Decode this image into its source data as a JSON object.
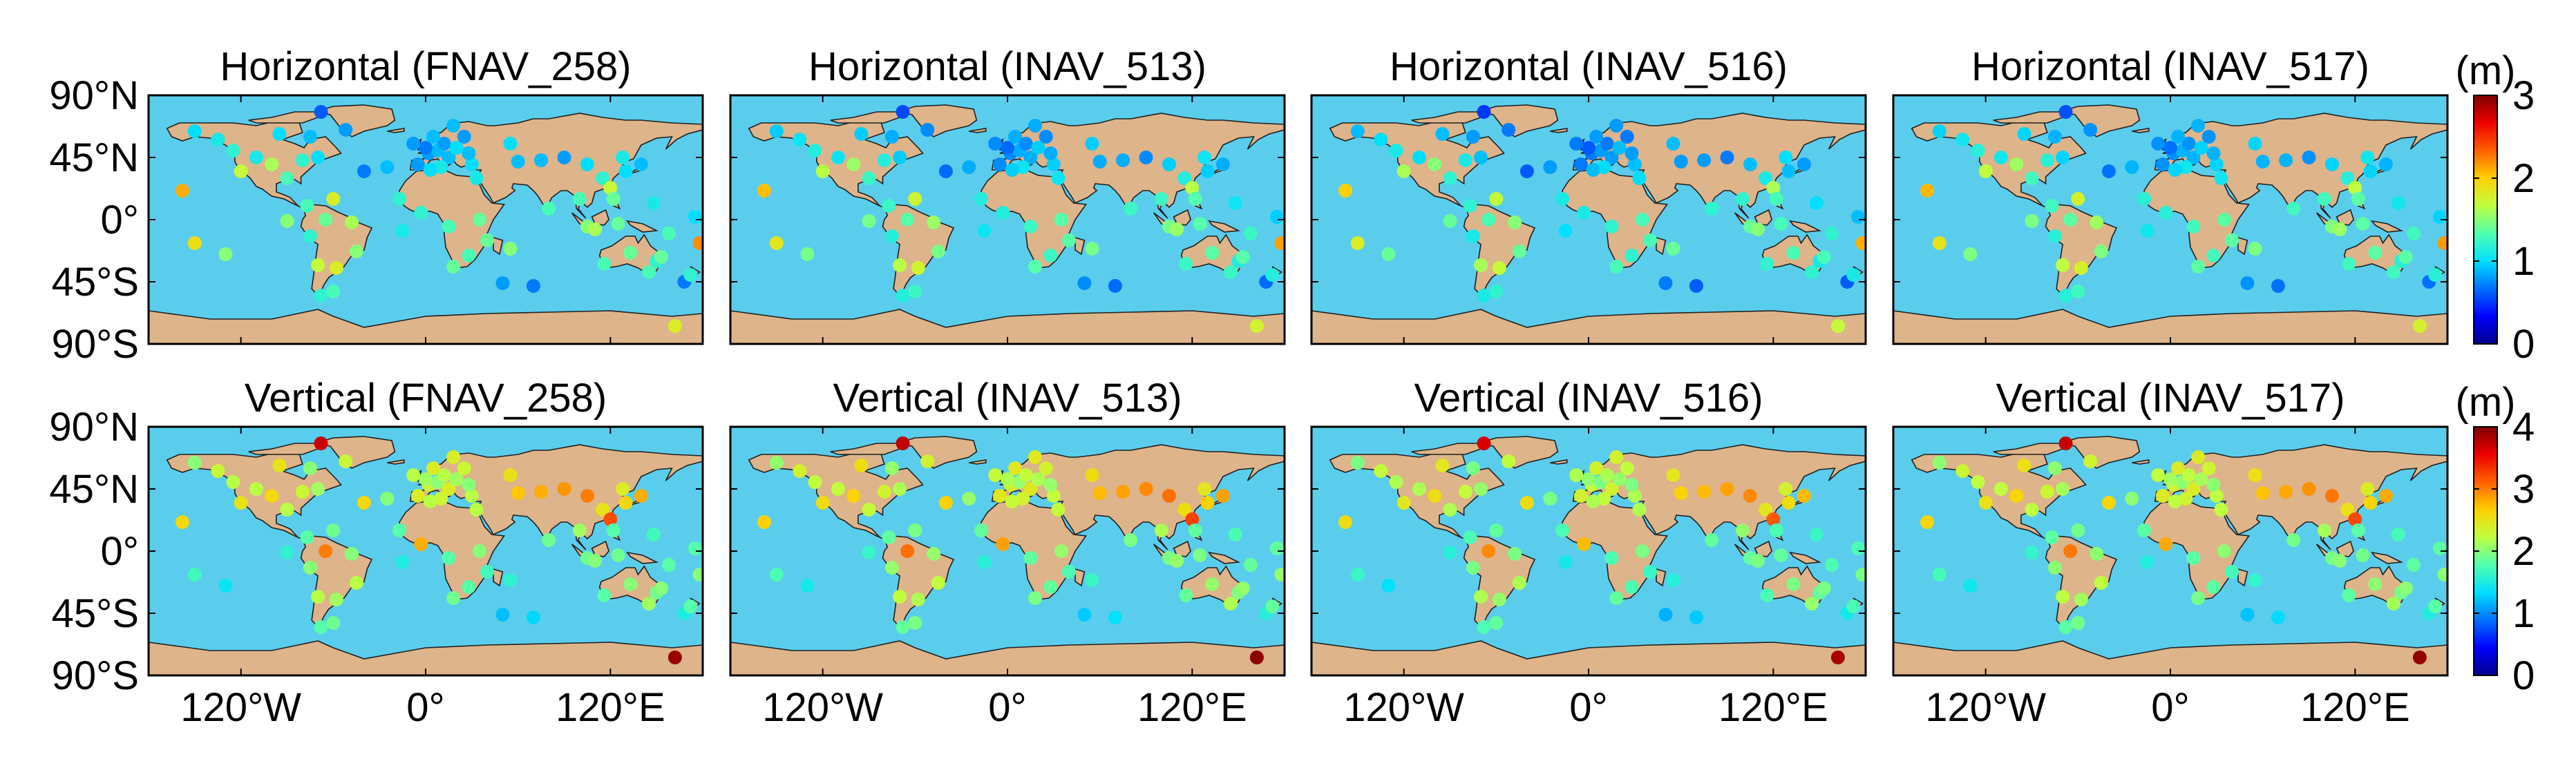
{
  "colors": {
    "ocean": "#5bcdec",
    "land": "#deb48a",
    "coast": "#1e1e1e",
    "frame": "#000000"
  },
  "colormap": [
    "#00008f",
    "#0000ff",
    "#0070ff",
    "#00dfff",
    "#50ffaf",
    "#bfff40",
    "#ffd000",
    "#ff6000",
    "#ef0000",
    "#800000"
  ],
  "rows": [
    {
      "kind": "horizontal",
      "colorbar": {
        "unit": "(m)",
        "min": 0,
        "max": 3,
        "ticks": [
          "0",
          "1",
          "2",
          "3"
        ]
      },
      "panels": [
        {
          "title": "Horizontal (FNAV_258)",
          "offset": 0.0
        },
        {
          "title": "Horizontal (INAV_513)",
          "offset": -0.05
        },
        {
          "title": "Horizontal (INAV_516)",
          "offset": -0.1
        },
        {
          "title": "Horizontal (INAV_517)",
          "offset": -0.03
        }
      ]
    },
    {
      "kind": "vertical",
      "colorbar": {
        "unit": "(m)",
        "min": 0,
        "max": 4,
        "ticks": [
          "0",
          "1",
          "2",
          "3",
          "4"
        ]
      },
      "panels": [
        {
          "title": "Vertical (FNAV_258)",
          "offset": 0.0
        },
        {
          "title": "Vertical (INAV_513)",
          "offset": 0.05
        },
        {
          "title": "Vertical (INAV_516)",
          "offset": -0.05
        },
        {
          "title": "Vertical (INAV_517)",
          "offset": 0.02
        }
      ]
    }
  ],
  "lat_ticks": [
    "90°N",
    "45°N",
    "0°",
    "45°S",
    "90°S"
  ],
  "lon_ticks": [
    "120°W",
    "0°",
    "120°E"
  ],
  "stations": [
    {
      "lon": -150,
      "lat": 64,
      "h": 1.0,
      "v": 2.0
    },
    {
      "lon": -135,
      "lat": 58,
      "h": 1.1,
      "v": 2.3
    },
    {
      "lon": -125,
      "lat": 50,
      "h": 1.2,
      "v": 2.2
    },
    {
      "lon": -120,
      "lat": 35,
      "h": 1.7,
      "v": 2.5
    },
    {
      "lon": -110,
      "lat": 45,
      "h": 1.1,
      "v": 2.2
    },
    {
      "lon": -100,
      "lat": 40,
      "h": 1.6,
      "v": 2.6
    },
    {
      "lon": -95,
      "lat": 62,
      "h": 1.0,
      "v": 2.5
    },
    {
      "lon": -90,
      "lat": 30,
      "h": 1.3,
      "v": 2.2
    },
    {
      "lon": -80,
      "lat": 43,
      "h": 1.2,
      "v": 2.3
    },
    {
      "lon": -75,
      "lat": 60,
      "h": 0.9,
      "v": 2.0
    },
    {
      "lon": -70,
      "lat": 45,
      "h": 1.0,
      "v": 2.1
    },
    {
      "lon": -68,
      "lat": 78,
      "h": 0.6,
      "v": 3.7
    },
    {
      "lon": -52,
      "lat": 65,
      "h": 0.8,
      "v": 2.3
    },
    {
      "lon": -40,
      "lat": 35,
      "h": 0.7,
      "v": 2.6
    },
    {
      "lon": -158,
      "lat": 21,
      "h": 2.1,
      "v": 2.6
    },
    {
      "lon": -150,
      "lat": -17,
      "h": 1.9,
      "v": 1.7
    },
    {
      "lon": -130,
      "lat": -25,
      "h": 1.5,
      "v": 1.4
    },
    {
      "lon": -90,
      "lat": -1,
      "h": 1.5,
      "v": 1.6
    },
    {
      "lon": -77,
      "lat": 10,
      "h": 1.3,
      "v": 1.8
    },
    {
      "lon": -60,
      "lat": 15,
      "h": 1.8,
      "v": 1.9
    },
    {
      "lon": -75,
      "lat": -12,
      "h": 1.2,
      "v": 2.0
    },
    {
      "lon": -65,
      "lat": 0,
      "h": 1.4,
      "v": 3.0
    },
    {
      "lon": -48,
      "lat": -2,
      "h": 1.6,
      "v": 2.0
    },
    {
      "lon": -45,
      "lat": -23,
      "h": 1.5,
      "v": 2.2
    },
    {
      "lon": -70,
      "lat": -33,
      "h": 1.7,
      "v": 2.2
    },
    {
      "lon": -58,
      "lat": -35,
      "h": 1.8,
      "v": 2.1
    },
    {
      "lon": -68,
      "lat": -55,
      "h": 1.2,
      "v": 1.8
    },
    {
      "lon": -60,
      "lat": -52,
      "h": 1.3,
      "v": 1.9
    },
    {
      "lon": -15,
      "lat": -8,
      "h": 1.1,
      "v": 1.5
    },
    {
      "lon": -17,
      "lat": 15,
      "h": 1.2,
      "v": 1.8
    },
    {
      "lon": -25,
      "lat": 38,
      "h": 0.9,
      "v": 2.0
    },
    {
      "lon": -5,
      "lat": 40,
      "h": 0.8,
      "v": 2.4
    },
    {
      "lon": 2,
      "lat": 48,
      "h": 0.8,
      "v": 2.3
    },
    {
      "lon": 8,
      "lat": 50,
      "h": 0.9,
      "v": 2.0
    },
    {
      "lon": 12,
      "lat": 55,
      "h": 0.8,
      "v": 2.2
    },
    {
      "lon": 15,
      "lat": 45,
      "h": 0.9,
      "v": 2.4
    },
    {
      "lon": 20,
      "lat": 52,
      "h": 1.0,
      "v": 2.1
    },
    {
      "lon": 25,
      "lat": 60,
      "h": 0.8,
      "v": 2.3
    },
    {
      "lon": 18,
      "lat": 68,
      "h": 0.9,
      "v": 2.4
    },
    {
      "lon": 30,
      "lat": 40,
      "h": 1.0,
      "v": 2.2
    },
    {
      "lon": 28,
      "lat": 48,
      "h": 0.9,
      "v": 2.0
    },
    {
      "lon": 10,
      "lat": 38,
      "h": 1.1,
      "v": 2.3
    },
    {
      "lon": 0,
      "lat": 52,
      "h": 0.7,
      "v": 2.1
    },
    {
      "lon": -8,
      "lat": 55,
      "h": 0.8,
      "v": 2.2
    },
    {
      "lon": 5,
      "lat": 60,
      "h": 0.9,
      "v": 2.4
    },
    {
      "lon": -3,
      "lat": 5,
      "h": 1.2,
      "v": 2.8
    },
    {
      "lon": 3,
      "lat": 36,
      "h": 1.0,
      "v": 2.2
    },
    {
      "lon": 33,
      "lat": 30,
      "h": 1.1,
      "v": 2.2
    },
    {
      "lon": 35,
      "lat": 0,
      "h": 1.4,
      "v": 2.0
    },
    {
      "lon": 15,
      "lat": -5,
      "h": 1.3,
      "v": 1.8
    },
    {
      "lon": 18,
      "lat": -34,
      "h": 1.4,
      "v": 1.9
    },
    {
      "lon": 28,
      "lat": -26,
      "h": 1.3,
      "v": 1.8
    },
    {
      "lon": 40,
      "lat": -15,
      "h": 1.4,
      "v": 1.7
    },
    {
      "lon": 55,
      "lat": -21,
      "h": 1.5,
      "v": 1.6
    },
    {
      "lon": 70,
      "lat": -48,
      "h": 0.7,
      "v": 1.3
    },
    {
      "lon": 50,
      "lat": -46,
      "h": 0.8,
      "v": 1.2
    },
    {
      "lon": 55,
      "lat": 55,
      "h": 1.0,
      "v": 2.5
    },
    {
      "lon": 60,
      "lat": 42,
      "h": 0.9,
      "v": 2.7
    },
    {
      "lon": 75,
      "lat": 43,
      "h": 0.9,
      "v": 2.8
    },
    {
      "lon": 90,
      "lat": 45,
      "h": 0.8,
      "v": 2.9
    },
    {
      "lon": 105,
      "lat": 40,
      "h": 1.0,
      "v": 3.0
    },
    {
      "lon": 115,
      "lat": 30,
      "h": 1.2,
      "v": 2.5
    },
    {
      "lon": 120,
      "lat": 23,
      "h": 1.7,
      "v": 3.2
    },
    {
      "lon": 130,
      "lat": 35,
      "h": 1.0,
      "v": 2.6
    },
    {
      "lon": 140,
      "lat": 40,
      "h": 0.9,
      "v": 2.8
    },
    {
      "lon": 128,
      "lat": 45,
      "h": 1.1,
      "v": 2.4
    },
    {
      "lon": 80,
      "lat": 8,
      "h": 1.3,
      "v": 1.9
    },
    {
      "lon": 100,
      "lat": 15,
      "h": 1.3,
      "v": 2.1
    },
    {
      "lon": 105,
      "lat": -5,
      "h": 1.5,
      "v": 1.9
    },
    {
      "lon": 122,
      "lat": 15,
      "h": 1.4,
      "v": 1.8
    },
    {
      "lon": 110,
      "lat": -7,
      "h": 1.6,
      "v": 2.0
    },
    {
      "lon": 125,
      "lat": -3,
      "h": 1.4,
      "v": 1.9
    },
    {
      "lon": 148,
      "lat": 12,
      "h": 1.1,
      "v": 1.7
    },
    {
      "lon": 116,
      "lat": -32,
      "h": 1.3,
      "v": 1.8
    },
    {
      "lon": 133,
      "lat": -24,
      "h": 1.4,
      "v": 2.0
    },
    {
      "lon": 145,
      "lat": -38,
      "h": 1.3,
      "v": 2.1
    },
    {
      "lon": 150,
      "lat": -30,
      "h": 1.2,
      "v": 1.9
    },
    {
      "lon": 153,
      "lat": -27,
      "h": 1.4,
      "v": 2.0
    },
    {
      "lon": 158,
      "lat": -10,
      "h": 1.3,
      "v": 1.8
    },
    {
      "lon": 168,
      "lat": -45,
      "h": 0.7,
      "v": 1.5
    },
    {
      "lon": 172,
      "lat": -40,
      "h": 1.2,
      "v": 1.8
    },
    {
      "lon": 175,
      "lat": 2,
      "h": 1.0,
      "v": 1.8
    },
    {
      "lon": 178,
      "lat": -17,
      "h": 2.2,
      "v": 2.0
    },
    {
      "lon": 162,
      "lat": -77,
      "h": 1.8,
      "v": 3.9
    }
  ]
}
